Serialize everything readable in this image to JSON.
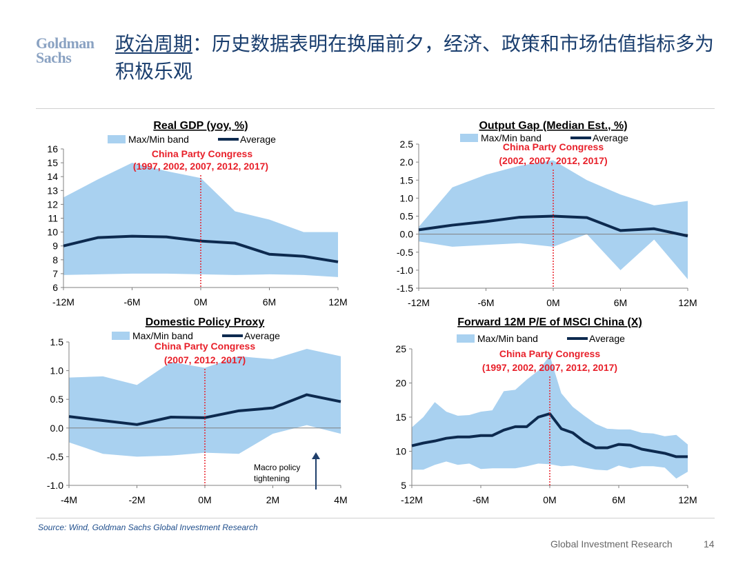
{
  "header": {
    "logo_line1": "Goldman",
    "logo_line2": "Sachs",
    "title_highlight": "政治周期",
    "title_rest": "：历史数据表明在换届前夕，经济、政策和市场估值指标多为积极乐观"
  },
  "footer": {
    "source": "Source: Wind, Goldman Sachs Global Investment Research",
    "label": "Global Investment Research",
    "page": "14"
  },
  "colors": {
    "band": "#a9d1f0",
    "average": "#0d2a4f",
    "congress": "#e8202a",
    "title": "#1a3e6e"
  },
  "chart_data": [
    {
      "type": "area",
      "title": "Real GDP (yoy, %)",
      "legend": {
        "band": "Max/Min band",
        "average": "Average"
      },
      "annotation": [
        "China Party Congress",
        "(1997, 2002, 2007, 2012, 2017)"
      ],
      "xlim": [
        -12,
        12
      ],
      "xticks": [
        -12,
        -6,
        0,
        6,
        12
      ],
      "xtick_labels": [
        "-12M",
        "-6M",
        "0M",
        "6M",
        "12M"
      ],
      "ylim": [
        6,
        16
      ],
      "yticks": [
        6,
        7,
        8,
        9,
        10,
        11,
        12,
        13,
        14,
        15,
        16
      ],
      "ytick_labels": [
        "6",
        "7",
        "8",
        "9",
        "10",
        "11",
        "12",
        "13",
        "14",
        "15",
        "16"
      ],
      "x": [
        -12,
        -9,
        -6,
        -3,
        0,
        3,
        6,
        9,
        12
      ],
      "max": [
        12.5,
        13.8,
        15.0,
        14.4,
        13.9,
        11.5,
        10.9,
        10.0,
        10.0
      ],
      "min": [
        6.9,
        6.95,
        7.0,
        7.0,
        6.95,
        6.9,
        6.95,
        6.9,
        6.75
      ],
      "average": [
        9.0,
        9.6,
        9.7,
        9.65,
        9.35,
        9.2,
        8.4,
        8.25,
        7.85
      ],
      "zero_line": false
    },
    {
      "type": "area",
      "title": "Output Gap (Median Est., %)",
      "legend": {
        "band": "Max/Min band",
        "average": "Average"
      },
      "annotation": [
        "China Party Congress",
        "(2002, 2007, 2012, 2017)"
      ],
      "xlim": [
        -12,
        12
      ],
      "xticks": [
        -12,
        -6,
        0,
        6,
        12
      ],
      "xtick_labels": [
        "-12M",
        "-6M",
        "0M",
        "6M",
        "12M"
      ],
      "ylim": [
        -1.5,
        2.5
      ],
      "yticks": [
        -1.5,
        -1.0,
        -0.5,
        0.0,
        0.5,
        1.0,
        1.5,
        2.0,
        2.5
      ],
      "ytick_labels": [
        "-1.5",
        "-1.0",
        "-0.5",
        "0.0",
        "0.5",
        "1.0",
        "1.5",
        "2.0",
        "2.5"
      ],
      "x": [
        -12,
        -9,
        -6,
        -3,
        0,
        3,
        6,
        9,
        12
      ],
      "max": [
        0.2,
        1.3,
        1.65,
        1.9,
        2.05,
        1.5,
        1.1,
        0.8,
        0.92
      ],
      "min": [
        -0.2,
        -0.35,
        -0.3,
        -0.25,
        -0.35,
        0.0,
        -1.0,
        -0.15,
        -1.25
      ],
      "average": [
        0.12,
        0.25,
        0.35,
        0.47,
        0.5,
        0.46,
        0.1,
        0.15,
        -0.05
      ],
      "zero_line": true
    },
    {
      "type": "area",
      "title": "Domestic Policy Proxy",
      "legend": {
        "band": "Max/Min band",
        "average": "Average"
      },
      "annotation": [
        "China Party Congress",
        "(2007, 2012, 2017)"
      ],
      "side_note": [
        "Macro policy",
        "tightening"
      ],
      "xlim": [
        -4,
        4
      ],
      "xticks": [
        -4,
        -2,
        0,
        2,
        4
      ],
      "xtick_labels": [
        "-4M",
        "-2M",
        "0M",
        "2M",
        "4M"
      ],
      "ylim": [
        -1.0,
        1.5
      ],
      "yticks": [
        -1.0,
        -0.5,
        0.0,
        0.5,
        1.0,
        1.5
      ],
      "ytick_labels": [
        "-1.0",
        "-0.5",
        "0.0",
        "0.5",
        "1.0",
        "1.5"
      ],
      "x": [
        -4,
        -3,
        -2,
        -1,
        0,
        1,
        2,
        3,
        4
      ],
      "max": [
        0.88,
        0.9,
        0.75,
        1.15,
        1.05,
        1.25,
        1.2,
        1.38,
        1.25
      ],
      "min": [
        -0.25,
        -0.45,
        -0.5,
        -0.48,
        -0.43,
        -0.45,
        -0.1,
        0.05,
        -0.1
      ],
      "average": [
        0.2,
        0.13,
        0.06,
        0.19,
        0.18,
        0.3,
        0.35,
        0.58,
        0.46
      ],
      "zero_line": true
    },
    {
      "type": "area",
      "title": "Forward 12M P/E of MSCI China (X)",
      "legend": {
        "band": "Max/Min band",
        "average": "Average"
      },
      "annotation": [
        "China Party Congress",
        "(1997, 2002, 2007, 2012, 2017)"
      ],
      "xlim": [
        -12,
        12
      ],
      "xticks": [
        -12,
        -6,
        0,
        6,
        12
      ],
      "xtick_labels": [
        "-12M",
        "-6M",
        "0M",
        "6M",
        "12M"
      ],
      "ylim": [
        5,
        25
      ],
      "yticks": [
        5,
        10,
        15,
        20,
        25
      ],
      "ytick_labels": [
        "5",
        "10",
        "15",
        "20",
        "25"
      ],
      "x": [
        -12,
        -11,
        -10,
        -9,
        -8,
        -7,
        -6,
        -5,
        -4,
        -3,
        -2,
        -1,
        0,
        1,
        2,
        3,
        4,
        5,
        6,
        7,
        8,
        9,
        10,
        11,
        12
      ],
      "max": [
        13.5,
        15.0,
        17.2,
        15.8,
        15.2,
        15.3,
        15.8,
        16.0,
        18.8,
        19.0,
        20.5,
        21.8,
        24.0,
        18.5,
        16.5,
        15.2,
        14.0,
        13.3,
        13.2,
        13.2,
        12.7,
        12.6,
        12.2,
        12.4,
        11.0
      ],
      "min": [
        7.3,
        7.3,
        8.0,
        8.5,
        8.0,
        8.2,
        7.4,
        7.5,
        7.5,
        7.5,
        7.8,
        8.2,
        8.1,
        7.8,
        7.9,
        7.6,
        7.3,
        7.2,
        7.9,
        7.5,
        7.8,
        7.8,
        7.6,
        6.0,
        7.0
      ],
      "average": [
        10.8,
        11.2,
        11.5,
        11.9,
        12.1,
        12.1,
        12.3,
        12.3,
        13.1,
        13.6,
        13.6,
        15.0,
        15.5,
        13.3,
        12.7,
        11.4,
        10.5,
        10.5,
        11.0,
        10.9,
        10.3,
        10.0,
        9.7,
        9.2,
        9.2
      ],
      "zero_line": false
    }
  ]
}
